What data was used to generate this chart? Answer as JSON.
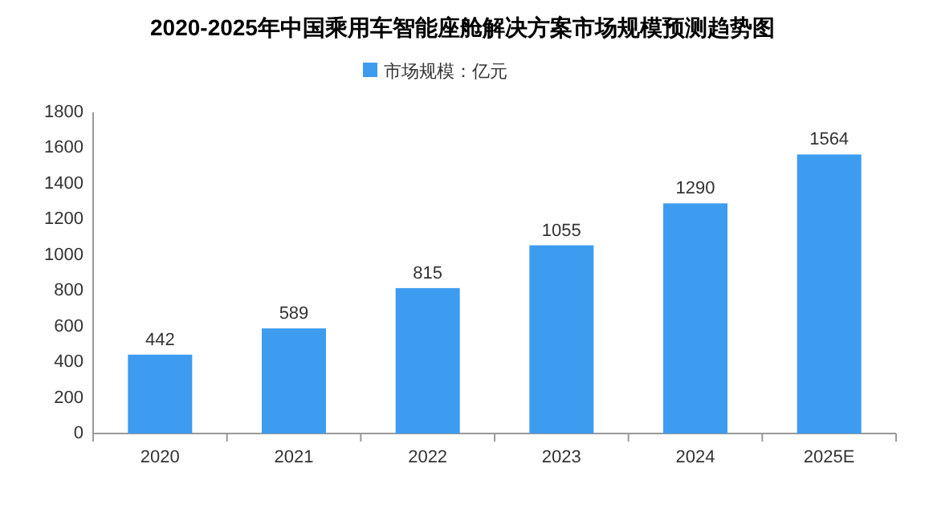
{
  "chart_data": {
    "type": "bar",
    "title": "2020-2025年中国乘用车智能座舱解决方案市场规模预测趋势图",
    "categories": [
      "2020",
      "2021",
      "2022",
      "2023",
      "2024",
      "2025E"
    ],
    "series": [
      {
        "name": "市场规模：亿元",
        "color": "#3d9cf0",
        "values": [
          442,
          589,
          815,
          1055,
          1290,
          1564
        ]
      }
    ],
    "ylim": [
      0,
      1800
    ],
    "yticks": [
      0,
      200,
      400,
      600,
      800,
      1000,
      1200,
      1400,
      1600,
      1800
    ],
    "data_labels": true,
    "legend": "top",
    "grid": false
  }
}
